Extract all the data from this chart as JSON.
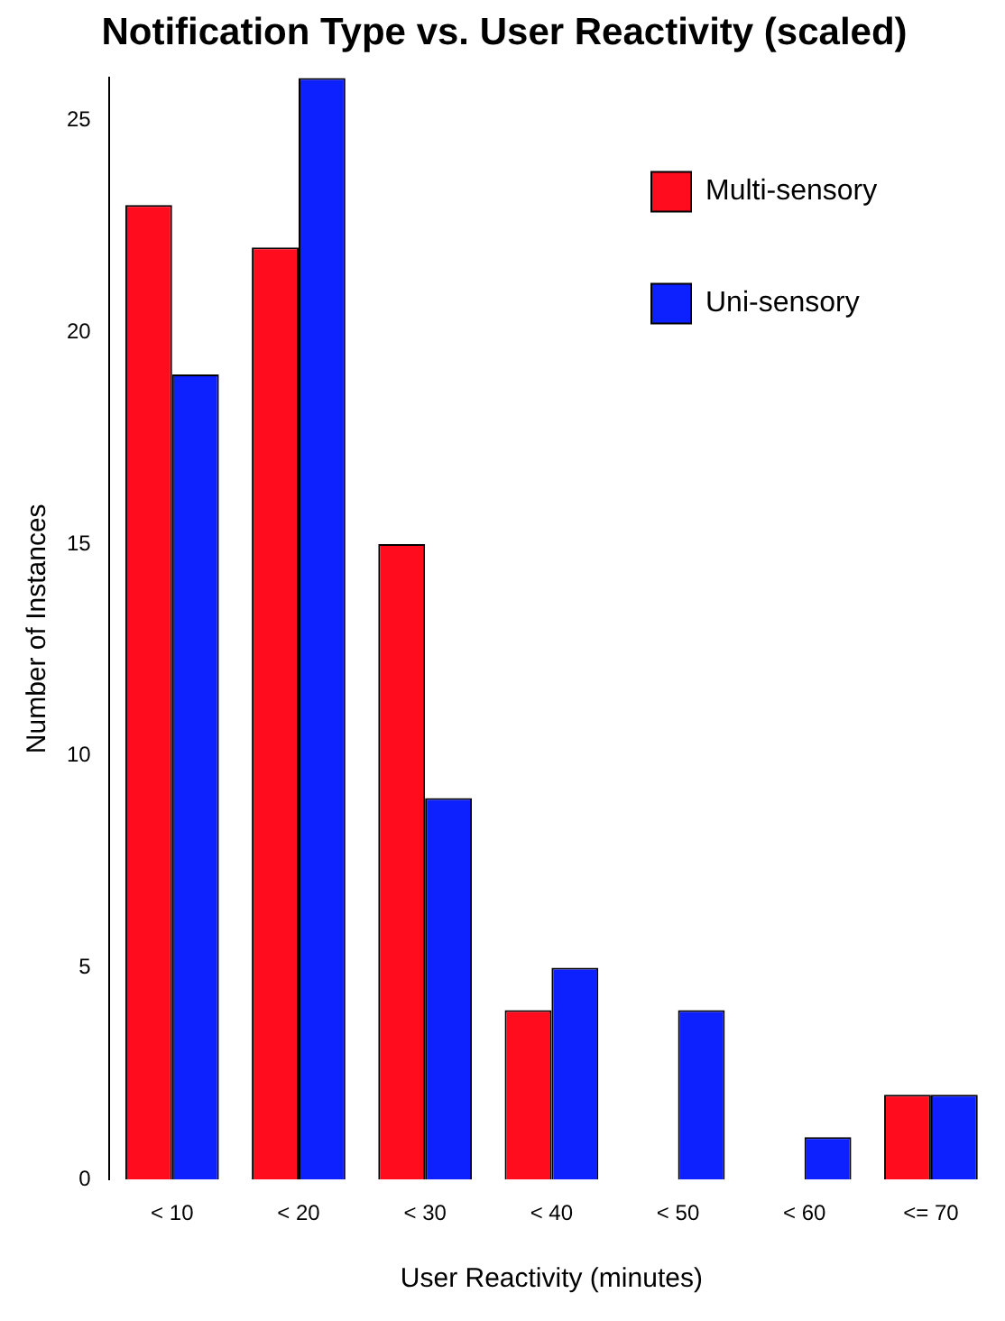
{
  "chart_data": {
    "type": "bar",
    "title": "Notification Type vs. User Reactivity (scaled)",
    "xlabel": "User Reactivity (minutes)",
    "ylabel": "Number of Instances",
    "categories": [
      "< 10",
      "< 20",
      "< 30",
      "< 40",
      "< 50",
      "< 60",
      "<= 70"
    ],
    "series": [
      {
        "name": "Multi-sensory",
        "color": "#ff0d1f",
        "values": [
          23,
          22,
          15,
          4,
          0,
          0,
          2
        ]
      },
      {
        "name": "Uni-sensory",
        "color": "#0d21ff",
        "values": [
          19,
          26,
          9,
          5,
          4,
          1,
          2
        ]
      }
    ],
    "ylim": [
      0,
      26
    ],
    "yticks": [
      0,
      5,
      10,
      15,
      20,
      25
    ],
    "grid": false,
    "legend": "top right"
  }
}
